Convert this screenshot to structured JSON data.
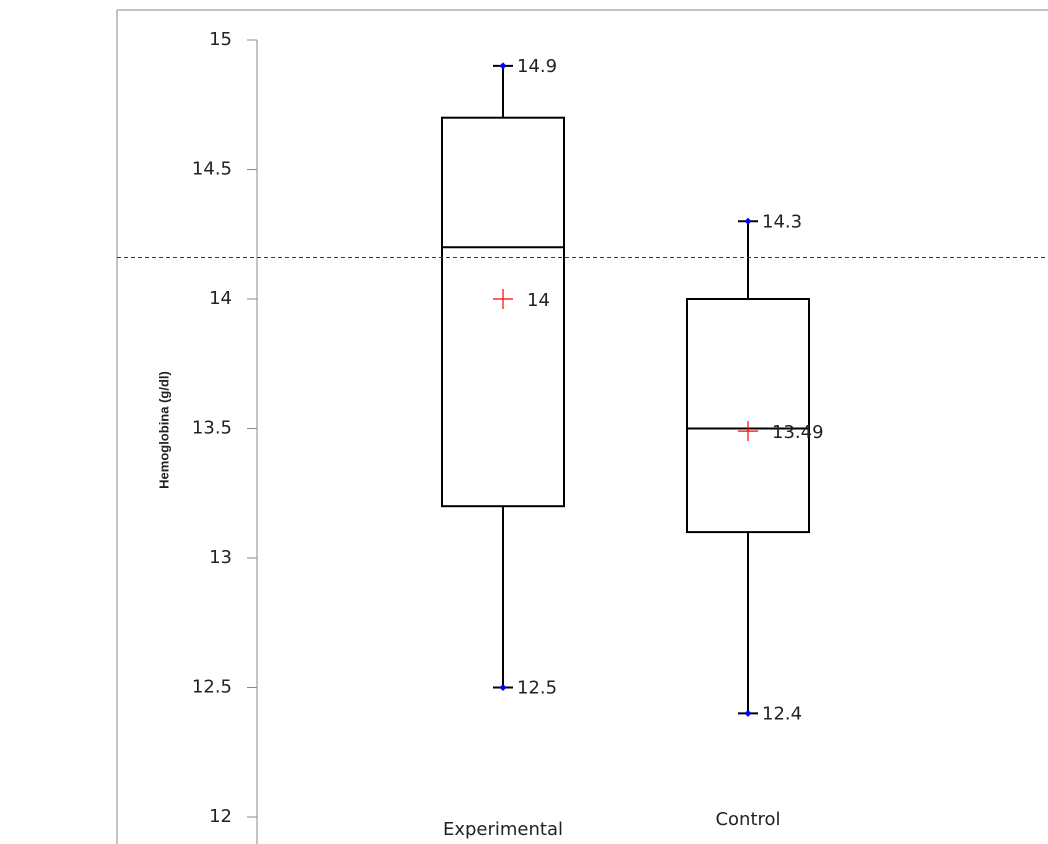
{
  "chart_data": {
    "type": "box",
    "y_label": "Hemoglobina (g/dl)",
    "categories": [
      "Experimental",
      "Control"
    ],
    "boxes": [
      {
        "min": 12.5,
        "q1": 13.2,
        "median": 14.2,
        "q3": 14.7,
        "max": 14.9,
        "mean": 14
      },
      {
        "min": 12.4,
        "q1": 13.1,
        "median": 13.5,
        "q3": 14.0,
        "max": 14.3,
        "mean": 13.49
      }
    ],
    "box_color": "#000000",
    "whisker_end_color": "#0000ff",
    "mean_color": "#ff0000",
    "reference_line": {
      "value": 14.16,
      "color": "#c00000"
    },
    "ylim": [
      12,
      15
    ],
    "yticks": [
      12,
      12.5,
      13,
      13.5,
      14,
      14.5,
      15
    ]
  }
}
